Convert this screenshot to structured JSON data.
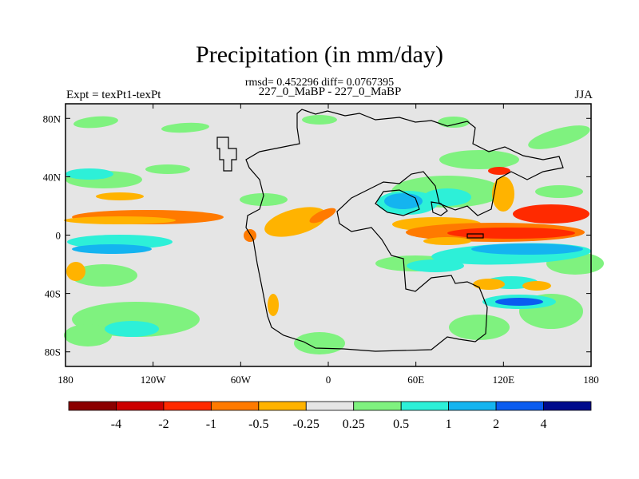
{
  "header": {
    "title": "Precipitation (in mm/day)",
    "stats": "rmsd= 0.452296 diff= 0.0767395",
    "case": "227_0_MaBP - 227_0_MaBP",
    "left_label": "Expt = texPt1-texPt",
    "season": "JJA"
  },
  "chart_data": {
    "type": "heatmap",
    "title": "Precipitation (in mm/day)",
    "subtitle": "rmsd= 0.452296 diff= 0.0767395",
    "xlabel": "",
    "ylabel": "",
    "xlim": [
      -180,
      180
    ],
    "ylim": [
      -90,
      90
    ],
    "x_ticks": [
      {
        "value": -180,
        "label": "180"
      },
      {
        "value": -120,
        "label": "120W"
      },
      {
        "value": -60,
        "label": "60W"
      },
      {
        "value": 0,
        "label": "0"
      },
      {
        "value": 60,
        "label": "60E"
      },
      {
        "value": 120,
        "label": "120E"
      },
      {
        "value": 180,
        "label": "180"
      }
    ],
    "y_ticks": [
      {
        "value": 80,
        "label": "80N"
      },
      {
        "value": 40,
        "label": "40N"
      },
      {
        "value": 0,
        "label": "0"
      },
      {
        "value": -40,
        "label": "40S"
      },
      {
        "value": -80,
        "label": "80S"
      }
    ],
    "colorbar": {
      "colors": [
        "#8b0000",
        "#cc0000",
        "#ff2a00",
        "#ff7a00",
        "#ffb300",
        "#e5e5e5",
        "#7ff27f",
        "#2df0d8",
        "#14b4f0",
        "#0a5cf0",
        "#000a8c"
      ],
      "labels": [
        "-4",
        "-2",
        "-1",
        "-0.5",
        "-0.25",
        "0.25",
        "0.5",
        "1",
        "2",
        "4"
      ]
    },
    "background_color": "#e5e5e5"
  }
}
